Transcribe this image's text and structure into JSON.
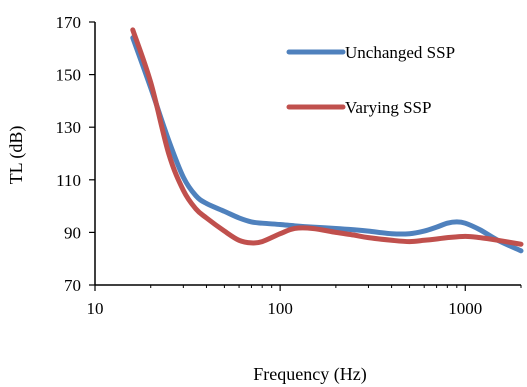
{
  "chart_data": {
    "type": "line",
    "xlabel": "Frequency (Hz)",
    "ylabel": "TL (dB)",
    "xscale": "log",
    "xlim": [
      10,
      2000
    ],
    "ylim": [
      70,
      170
    ],
    "xticks": [
      10,
      100,
      1000
    ],
    "yticks": [
      70,
      90,
      110,
      130,
      150,
      170
    ],
    "grid": false,
    "legend_position": "top-right",
    "series": [
      {
        "name": "Unchanged SSP",
        "color": "#4F81BD",
        "points": [
          [
            16,
            164
          ],
          [
            20,
            145
          ],
          [
            25,
            125
          ],
          [
            30,
            111
          ],
          [
            35,
            104
          ],
          [
            40,
            101
          ],
          [
            50,
            98
          ],
          [
            60,
            95.5
          ],
          [
            70,
            94
          ],
          [
            80,
            93.5
          ],
          [
            100,
            93
          ],
          [
            120,
            92.5
          ],
          [
            150,
            92
          ],
          [
            200,
            91.5
          ],
          [
            250,
            91
          ],
          [
            300,
            90.5
          ],
          [
            400,
            89.5
          ],
          [
            500,
            89.5
          ],
          [
            600,
            90.5
          ],
          [
            700,
            92
          ],
          [
            800,
            93.5
          ],
          [
            900,
            94
          ],
          [
            1000,
            93.5
          ],
          [
            1200,
            91
          ],
          [
            1500,
            87
          ],
          [
            2000,
            83
          ]
        ]
      },
      {
        "name": "Varying SSP",
        "color": "#C0504D",
        "points": [
          [
            16,
            167
          ],
          [
            20,
            147
          ],
          [
            25,
            120
          ],
          [
            30,
            106
          ],
          [
            35,
            99
          ],
          [
            40,
            95.5
          ],
          [
            50,
            90.5
          ],
          [
            60,
            87
          ],
          [
            70,
            86
          ],
          [
            80,
            86.5
          ],
          [
            100,
            89.5
          ],
          [
            120,
            91.5
          ],
          [
            150,
            91.5
          ],
          [
            200,
            90
          ],
          [
            250,
            89
          ],
          [
            300,
            88
          ],
          [
            400,
            87
          ],
          [
            500,
            86.5
          ],
          [
            600,
            87
          ],
          [
            700,
            87.5
          ],
          [
            800,
            88
          ],
          [
            1000,
            88.5
          ],
          [
            1200,
            88
          ],
          [
            1500,
            87
          ],
          [
            2000,
            85.5
          ]
        ]
      }
    ]
  }
}
